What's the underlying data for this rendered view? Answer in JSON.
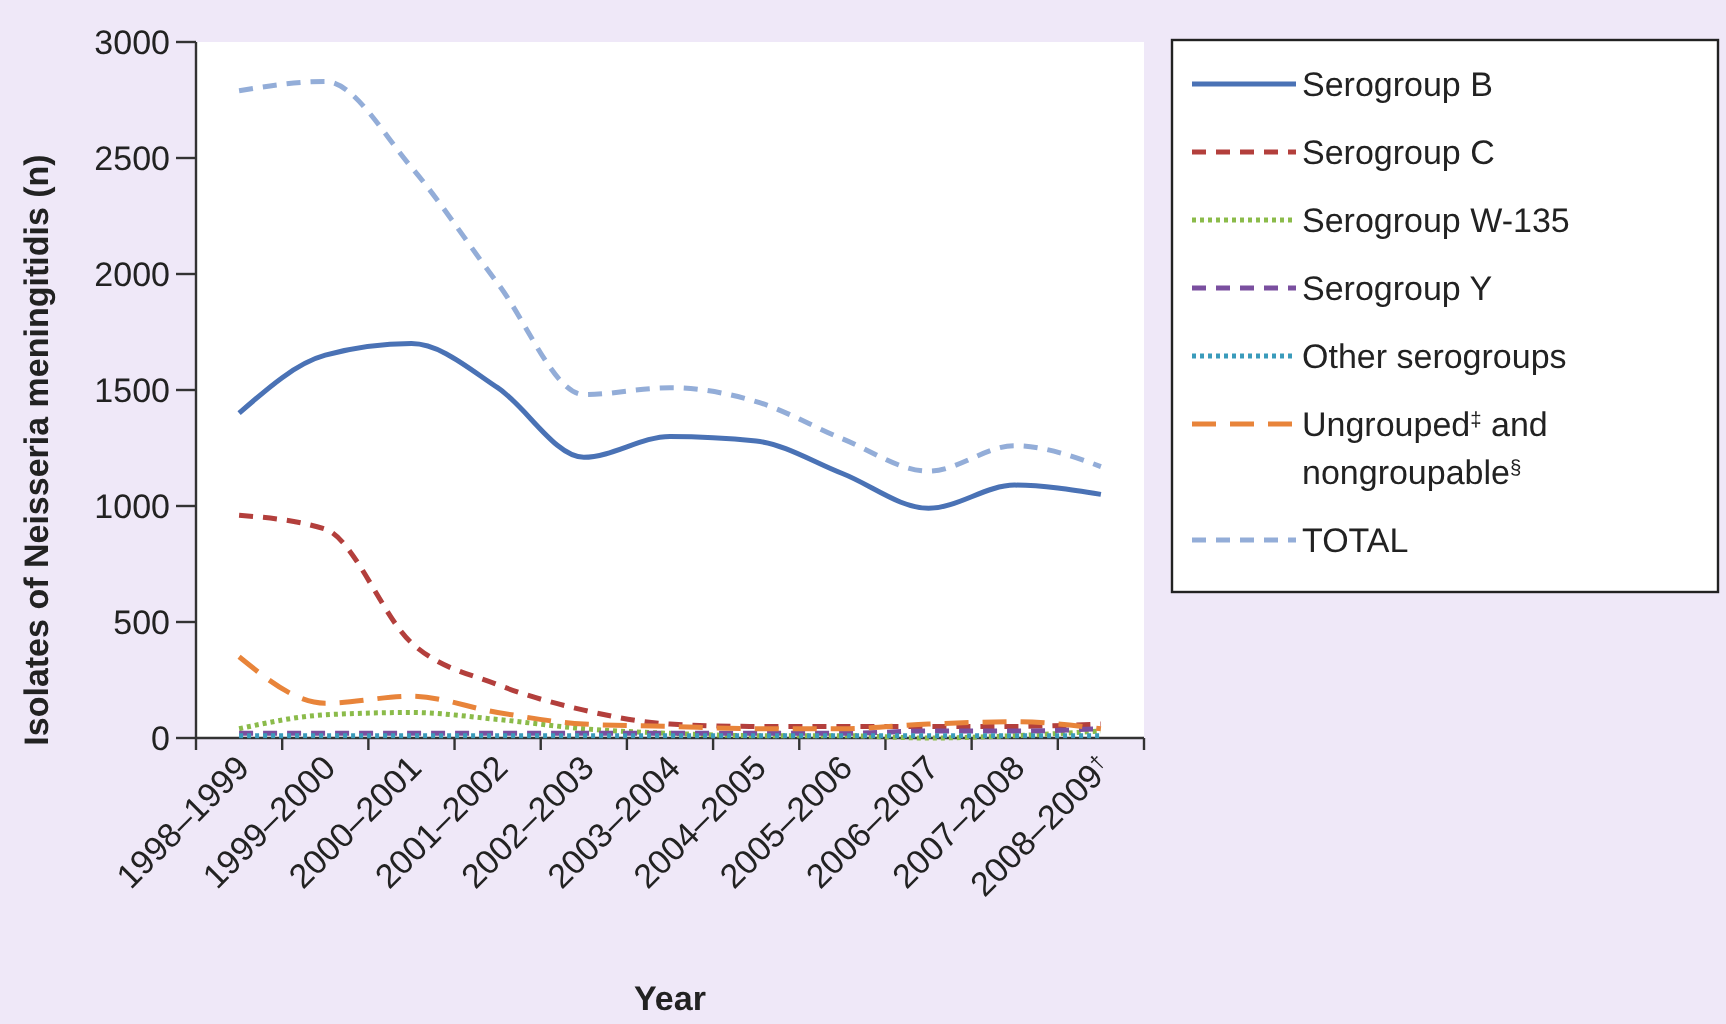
{
  "chart_data": {
    "type": "line",
    "xlabel": "Year",
    "ylabel": "Isolates of Neisseria meningitidis (n)",
    "categories": [
      "1998–1999",
      "1999–2000",
      "2000–2001",
      "2001–2002",
      "2002–2003",
      "2003–2004",
      "2004–2005",
      "2005–2006",
      "2006–2007",
      "2007–2008",
      "2008–2009$^{†}$"
    ],
    "ylim": [
      0,
      3000
    ],
    "yticks": [
      0,
      500,
      1000,
      1500,
      2000,
      2500,
      3000
    ],
    "grid": false,
    "legend": "right",
    "marker": "none",
    "series": [
      {
        "name": "Serogroup B",
        "color": "#4a72b5",
        "line_style": "solid",
        "values": [
          1400,
          1650,
          1700,
          1510,
          1210,
          1300,
          1280,
          1140,
          990,
          1090,
          1050
        ]
      },
      {
        "name": "Serogroup C",
        "color": "#b33f3c",
        "line_style": "dashed",
        "values": [
          960,
          900,
          410,
          230,
          120,
          60,
          50,
          50,
          50,
          50,
          60
        ]
      },
      {
        "name": "Serogroup W-135",
        "color": "#8bbb4a",
        "line_style": "dotted",
        "values": [
          40,
          100,
          110,
          80,
          40,
          20,
          10,
          10,
          0,
          10,
          30
        ]
      },
      {
        "name": "Serogroup Y",
        "color": "#7a4f9f",
        "line_style": "dashed",
        "values": [
          20,
          20,
          20,
          20,
          20,
          20,
          20,
          20,
          30,
          30,
          40
        ]
      },
      {
        "name": "Other serogroups",
        "color": "#3a9bbb",
        "line_style": "dotted",
        "values": [
          10,
          10,
          10,
          10,
          10,
          10,
          10,
          10,
          10,
          10,
          10
        ]
      },
      {
        "name": "Ungrouped$^{‡}$ and nongroupable$^{§}$",
        "color": "#e8843a",
        "line_style": "dashed",
        "values": [
          350,
          150,
          180,
          110,
          60,
          50,
          40,
          40,
          60,
          70,
          40
        ]
      },
      {
        "name": "TOTAL",
        "color": "#93add8",
        "line_style": "dashed",
        "values": [
          2790,
          2830,
          2460,
          1960,
          1480,
          1510,
          1450,
          1290,
          1150,
          1260,
          1170
        ]
      }
    ]
  }
}
